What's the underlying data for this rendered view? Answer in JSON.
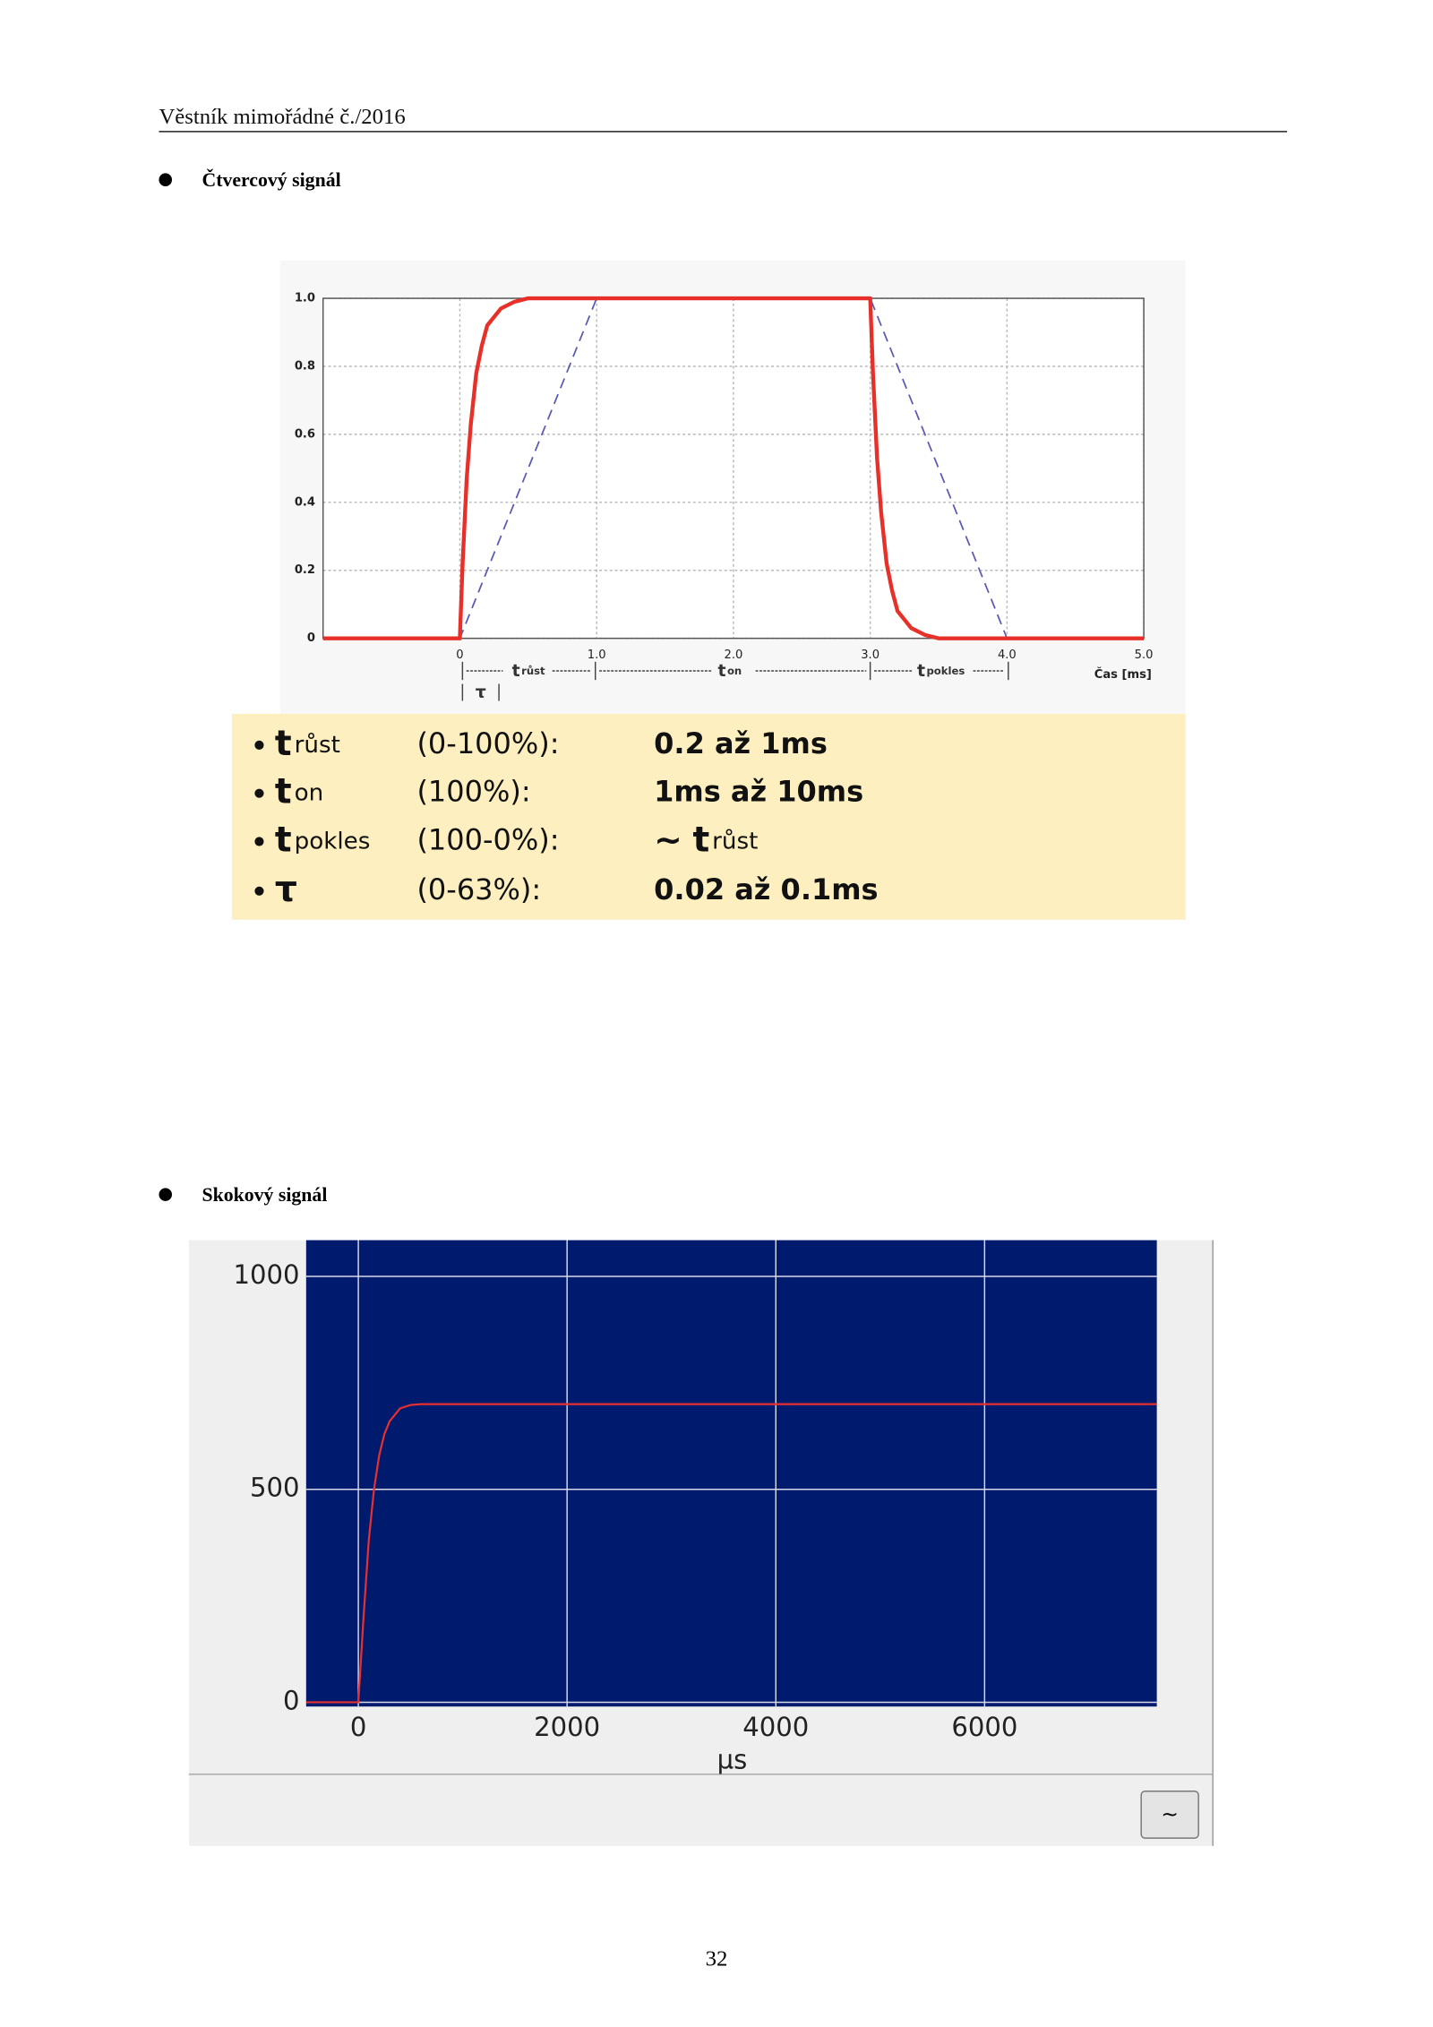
{
  "header": {
    "title": "Věstník mimořádné č./2016"
  },
  "sections": [
    {
      "heading": "Čtvercový signál"
    },
    {
      "heading": "Skokový signál"
    }
  ],
  "chart_data": [
    {
      "type": "line",
      "xlim": [
        -1,
        5
      ],
      "ylim": [
        0,
        1
      ],
      "xticks": [
        0,
        {
          "value": 1,
          "label": "1.0"
        },
        {
          "value": 2,
          "label": "2.0"
        },
        {
          "value": 3,
          "label": "3.0"
        },
        {
          "value": 4,
          "label": "4.0"
        },
        {
          "value": 5,
          "label": "5.0"
        }
      ],
      "yticks": [
        0,
        0.2,
        0.4,
        0.6,
        0.8,
        {
          "value": 1,
          "label": "1.0"
        }
      ],
      "grid": true,
      "grid_color": "#b8b8b8",
      "grid_dashed": true,
      "background": "#ffffff",
      "xlabel": "Čas [ms]",
      "annotations": [
        {
          "symbol": "t",
          "sub": "růst"
        },
        {
          "symbol": "t",
          "sub": "on"
        },
        {
          "symbol": "t",
          "sub": "pokles"
        },
        {
          "symbol": "τ"
        }
      ],
      "series": [
        {
          "color": "#5a5ab4",
          "dashed": true,
          "x": [
            -1,
            0,
            1,
            3,
            4,
            5
          ],
          "values": [
            0,
            0,
            1,
            1,
            0,
            0
          ]
        },
        {
          "color": "#e8302a",
          "dashed": false,
          "x": [
            -1,
            0,
            0.02,
            0.05,
            0.08,
            0.12,
            0.16,
            0.2,
            0.3,
            0.4,
            0.5,
            3,
            3.02,
            3.05,
            3.08,
            3.12,
            3.16,
            3.2,
            3.3,
            3.4,
            3.5,
            5
          ],
          "values": [
            0,
            0,
            0.22,
            0.47,
            0.63,
            0.78,
            0.86,
            0.92,
            0.97,
            0.99,
            1,
            1,
            0.78,
            0.53,
            0.37,
            0.22,
            0.14,
            0.08,
            0.03,
            0.01,
            0,
            0
          ]
        }
      ]
    },
    {
      "type": "line",
      "xlim": [
        -500,
        7650
      ],
      "ylim": [
        -10,
        1085
      ],
      "xticks": [
        0,
        2000,
        4000,
        6000
      ],
      "yticks": [
        0,
        500,
        1000
      ],
      "grid": true,
      "grid_color": "#d8d8e8",
      "grid_dashed": false,
      "background": "#001a6e",
      "xlabel": "µs",
      "series": [
        {
          "color": "#e83030",
          "dashed": false,
          "x": [
            -500,
            0,
            50,
            100,
            150,
            200,
            250,
            300,
            400,
            500,
            600,
            700,
            7650
          ],
          "values": [
            0,
            0,
            200,
            380,
            500,
            580,
            630,
            660,
            690,
            698,
            700,
            700,
            700
          ]
        }
      ],
      "button": "~"
    }
  ],
  "parameters": {
    "rows": [
      {
        "symbol": "t",
        "sub": "růst",
        "range": "(0-100%):",
        "value": "0.2 až 1ms"
      },
      {
        "symbol": "t",
        "sub": "on",
        "range": "(100%):",
        "value": "1ms až 10ms"
      },
      {
        "symbol": "t",
        "sub": "pokles",
        "range": "(100-0%):",
        "value": {
          "prefix": "~",
          "symbol": "t",
          "sub": "růst"
        }
      },
      {
        "symbol": "τ",
        "range": "(0-63%):",
        "value": "0.02 až 0.1ms"
      }
    ]
  },
  "footer": {
    "page_number": "32"
  }
}
